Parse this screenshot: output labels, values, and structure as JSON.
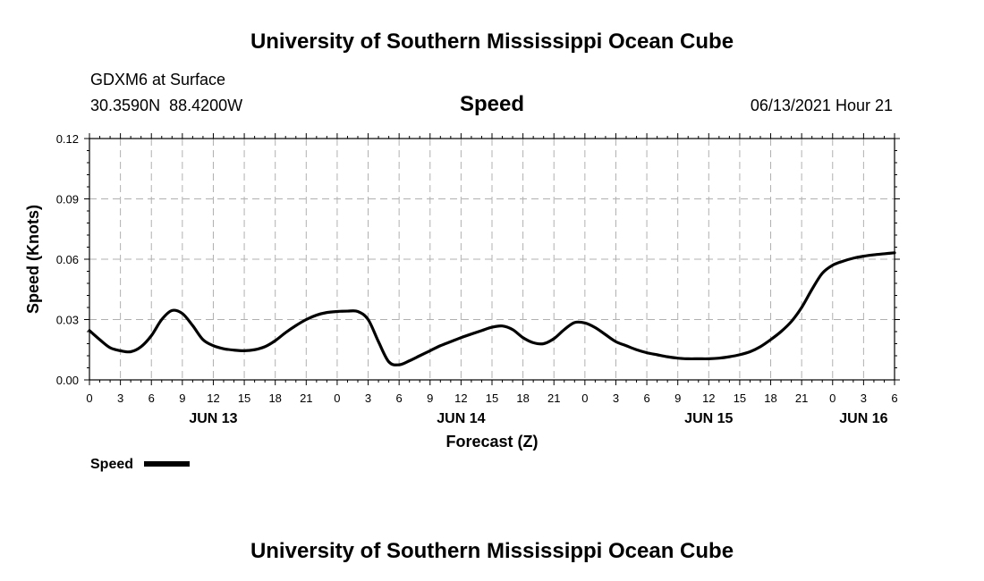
{
  "header": {
    "title": "University of Southern Mississippi Ocean Cube",
    "station": "GDXM6 at Surface",
    "location": "30.3590N  88.4200W",
    "variable": "Speed",
    "valid_time": "06/13/2021 Hour 21"
  },
  "footer": {
    "title": "University of Southern Mississippi Ocean Cube"
  },
  "legend": {
    "label": "Speed",
    "color": "#000000"
  },
  "chart_data": {
    "type": "line",
    "title": "Speed",
    "xlabel": "Forecast (Z)",
    "ylabel": "Speed (Knots)",
    "x_unit": "hours UTC from 2021-06-13 00Z",
    "xlim": [
      0,
      78
    ],
    "ylim": [
      0,
      0.12
    ],
    "y_ticks": [
      0.0,
      0.03,
      0.06,
      0.09,
      0.12
    ],
    "y_tick_labels": [
      "0.00",
      "0.03",
      "0.06",
      "0.09",
      "0.12"
    ],
    "x_ticks": [
      0,
      3,
      6,
      9,
      12,
      15,
      18,
      21,
      24,
      27,
      30,
      33,
      36,
      39,
      42,
      45,
      48,
      51,
      54,
      57,
      60,
      63,
      66,
      69,
      72,
      75,
      78
    ],
    "x_tick_labels": [
      "0",
      "3",
      "6",
      "9",
      "12",
      "15",
      "18",
      "21",
      "0",
      "3",
      "6",
      "9",
      "12",
      "15",
      "18",
      "21",
      "0",
      "3",
      "6",
      "9",
      "12",
      "15",
      "18",
      "21",
      "0",
      "3",
      "6"
    ],
    "date_labels": [
      {
        "x": 12,
        "text": "JUN 13"
      },
      {
        "x": 36,
        "text": "JUN 14"
      },
      {
        "x": 60,
        "text": "JUN 15"
      },
      {
        "x": 75,
        "text": "JUN 16"
      }
    ],
    "grid": true,
    "legend_position": "bottom-left",
    "series": [
      {
        "name": "Speed",
        "color": "#000000",
        "x": [
          0,
          1,
          2,
          3,
          4,
          5,
          6,
          7,
          8,
          9,
          10,
          11,
          12,
          13,
          14,
          15,
          16,
          17,
          18,
          19,
          20,
          21,
          22,
          23,
          24,
          25,
          26,
          27,
          28,
          29,
          30,
          31,
          32,
          33,
          34,
          35,
          36,
          37,
          38,
          39,
          40,
          41,
          42,
          43,
          44,
          45,
          46,
          47,
          48,
          49,
          50,
          51,
          52,
          53,
          54,
          55,
          56,
          57,
          58,
          59,
          60,
          61,
          62,
          63,
          64,
          65,
          66,
          67,
          68,
          69,
          70,
          71,
          72,
          73,
          74,
          75,
          76,
          77,
          78
        ],
        "values": [
          0.0245,
          0.02,
          0.016,
          0.0145,
          0.014,
          0.0165,
          0.022,
          0.03,
          0.0345,
          0.033,
          0.027,
          0.02,
          0.017,
          0.0155,
          0.0148,
          0.0145,
          0.015,
          0.0165,
          0.0195,
          0.0235,
          0.027,
          0.03,
          0.0322,
          0.0335,
          0.034,
          0.0342,
          0.034,
          0.03,
          0.019,
          0.009,
          0.0075,
          0.0095,
          0.012,
          0.0145,
          0.017,
          0.019,
          0.021,
          0.0228,
          0.0245,
          0.0262,
          0.0268,
          0.025,
          0.021,
          0.0185,
          0.018,
          0.0205,
          0.025,
          0.0285,
          0.0283,
          0.026,
          0.0225,
          0.019,
          0.017,
          0.015,
          0.0135,
          0.0125,
          0.0115,
          0.0108,
          0.0105,
          0.0105,
          0.0105,
          0.0108,
          0.0115,
          0.0125,
          0.014,
          0.0165,
          0.02,
          0.024,
          0.029,
          0.036,
          0.045,
          0.053,
          0.057,
          0.059,
          0.0605,
          0.0615,
          0.0622,
          0.0627,
          0.0632
        ]
      }
    ]
  }
}
